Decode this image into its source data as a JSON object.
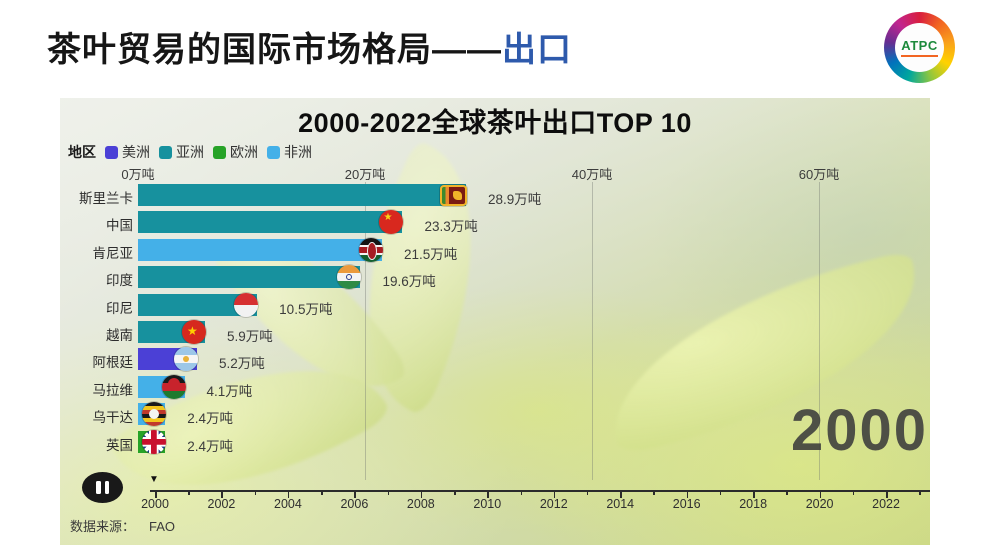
{
  "slide": {
    "title_black": "茶叶贸易的国际市场格局——",
    "title_blue": "出口",
    "logo_text": "ATPC"
  },
  "chart_data": {
    "type": "bar",
    "orientation": "horizontal",
    "title": "2000-2022全球茶叶出口TOP 10",
    "legend_title": "地区",
    "legend": [
      {
        "label": "美洲",
        "color": "#4b40d6"
      },
      {
        "label": "亚洲",
        "color": "#17919e"
      },
      {
        "label": "欧洲",
        "color": "#27a327"
      },
      {
        "label": "非洲",
        "color": "#44b0e8"
      }
    ],
    "x_axis": {
      "unit": "万吨",
      "tick_labels": [
        "0万吨",
        "20万吨",
        "40万吨",
        "60万吨"
      ],
      "tick_values": [
        0,
        20,
        40,
        60
      ],
      "xlim": [
        0,
        70
      ],
      "grid": true
    },
    "rows": [
      {
        "country": "斯里兰卡",
        "value": 28.9,
        "value_label": "28.9万吨",
        "region": "亚洲",
        "color": "#17919e",
        "flag": "lk"
      },
      {
        "country": "中国",
        "value": 23.3,
        "value_label": "23.3万吨",
        "region": "亚洲",
        "color": "#17919e",
        "flag": "cn"
      },
      {
        "country": "肯尼亚",
        "value": 21.5,
        "value_label": "21.5万吨",
        "region": "非洲",
        "color": "#44b0e8",
        "flag": "ke"
      },
      {
        "country": "印度",
        "value": 19.6,
        "value_label": "19.6万吨",
        "region": "亚洲",
        "color": "#17919e",
        "flag": "in"
      },
      {
        "country": "印尼",
        "value": 10.5,
        "value_label": "10.5万吨",
        "region": "亚洲",
        "color": "#17919e",
        "flag": "id"
      },
      {
        "country": "越南",
        "value": 5.9,
        "value_label": "5.9万吨",
        "region": "亚洲",
        "color": "#17919e",
        "flag": "vn"
      },
      {
        "country": "阿根廷",
        "value": 5.2,
        "value_label": "5.2万吨",
        "region": "美洲",
        "color": "#4b40d6",
        "flag": "ar"
      },
      {
        "country": "马拉维",
        "value": 4.1,
        "value_label": "4.1万吨",
        "region": "非洲",
        "color": "#44b0e8",
        "flag": "mw"
      },
      {
        "country": "乌干达",
        "value": 2.4,
        "value_label": "2.4万吨",
        "region": "非洲",
        "color": "#44b0e8",
        "flag": "ug"
      },
      {
        "country": "英国",
        "value": 2.4,
        "value_label": "2.4万吨",
        "region": "欧洲",
        "color": "#27a327",
        "flag": "gb"
      }
    ],
    "current_year": "2000",
    "timeline": {
      "start": 2000,
      "end": 2023,
      "label_years": [
        "2000",
        "2002",
        "2004",
        "2006",
        "2008",
        "2010",
        "2012",
        "2014",
        "2016",
        "2018",
        "2020",
        "2022"
      ],
      "marker_year": 2000
    },
    "player": {
      "icon": "pause-icon"
    },
    "source_label": "数据来源：",
    "source_value": "FAO"
  }
}
